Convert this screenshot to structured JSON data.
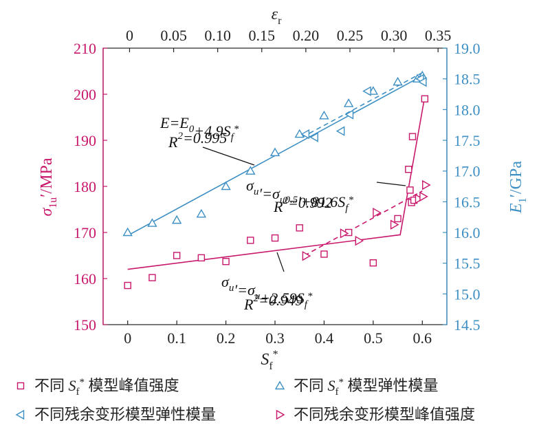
{
  "chart_data": {
    "type": "scatter",
    "axes": {
      "bottom": {
        "label_main": "S",
        "label_sub": "f",
        "label_sup": "*",
        "min": -0.05,
        "max": 0.65,
        "ticks": [
          0,
          0.1,
          0.2,
          0.3,
          0.4,
          0.5,
          0.6
        ],
        "tick_labels": [
          "0",
          "0.1",
          "0.2",
          "0.3",
          "0.4",
          "0.5",
          "0.6"
        ]
      },
      "top": {
        "label_main": "ε",
        "label_sub": "r",
        "min": -0.03,
        "max": 0.36,
        "ticks": [
          0,
          0.05,
          0.1,
          0.15,
          0.2,
          0.25,
          0.3,
          0.35
        ],
        "tick_labels": [
          "0",
          "0.05",
          "0.10",
          "0.15",
          "0.20",
          "0.25",
          "0.30",
          "0.35"
        ]
      },
      "left": {
        "label_main": "σ",
        "label_sub": "1u",
        "label_rest": "′/MPa",
        "min": 150,
        "max": 210,
        "ticks": [
          150,
          160,
          170,
          180,
          190,
          200,
          210
        ],
        "tick_labels": [
          "150",
          "160",
          "170",
          "180",
          "190",
          "200",
          "210"
        ]
      },
      "right": {
        "label_main": "E",
        "label_sub": "1",
        "label_rest": "′/GPa",
        "min": 14.5,
        "max": 19.0,
        "ticks": [
          14.5,
          15.0,
          15.5,
          16.0,
          16.5,
          17.0,
          17.5,
          18.0,
          18.5,
          19.0
        ],
        "tick_labels": [
          "14.5",
          "15.0",
          "15.5",
          "16.0",
          "16.5",
          "17.0",
          "17.5",
          "18.0",
          "18.5",
          "19.0"
        ]
      }
    },
    "colors": {
      "strength": "#c8176b",
      "modulus": "#3d8fc4"
    },
    "series": [
      {
        "name": "不同 Sf* 模型峰值强度",
        "marker": "square",
        "axis_x": "bottom",
        "axis_y": "left",
        "color": "#c8176b",
        "x": [
          0,
          0.05,
          0.1,
          0.15,
          0.2,
          0.25,
          0.3,
          0.35,
          0.4,
          0.45,
          0.5,
          0.55,
          0.572,
          0.575,
          0.578,
          0.58,
          0.583,
          0.605
        ],
        "y": [
          158.5,
          160.2,
          165.0,
          164.5,
          163.7,
          168.3,
          168.8,
          171.0,
          165.3,
          170.0,
          163.4,
          173.0,
          183.7,
          179.2,
          176.5,
          190.8,
          177.0,
          199.0
        ]
      },
      {
        "name": "不同 Sf* 模型弹性模量",
        "marker": "triangle-up",
        "axis_x": "bottom",
        "axis_y": "right",
        "color": "#3d8fc4",
        "x": [
          0,
          0.05,
          0.1,
          0.15,
          0.2,
          0.25,
          0.3,
          0.35,
          0.4,
          0.45,
          0.5,
          0.55,
          0.59,
          0.6
        ],
        "y": [
          16.0,
          16.15,
          16.2,
          16.3,
          16.75,
          17.0,
          17.3,
          17.6,
          17.9,
          18.1,
          18.3,
          18.45,
          18.5,
          18.55
        ]
      },
      {
        "name": "不同残余变形模型弹性模量",
        "marker": "triangle-left",
        "axis_x": "top",
        "axis_y": "right",
        "color": "#3d8fc4",
        "x": [
          0.2,
          0.21,
          0.24,
          0.25,
          0.27,
          0.33,
          0.333
        ],
        "y": [
          17.6,
          17.55,
          17.65,
          17.92,
          18.3,
          18.5,
          18.45
        ]
      },
      {
        "name": "不同残余变形模型峰值强度",
        "marker": "triangle-right",
        "axis_x": "top",
        "axis_y": "left",
        "color": "#c8176b",
        "x": [
          0.2,
          0.243,
          0.26,
          0.28,
          0.3,
          0.328,
          0.333,
          0.336
        ],
        "y": [
          164.9,
          169.8,
          168.2,
          174.3,
          171.7,
          177.3,
          177.8,
          180.3
        ]
      }
    ],
    "fits": [
      {
        "color": "#3d8fc4",
        "style": "solid",
        "axis_x": "bottom",
        "axis_y": "right",
        "x": [
          0,
          0.6
        ],
        "y": [
          15.95,
          18.55
        ]
      },
      {
        "color": "#3d8fc4",
        "style": "dashed",
        "axis_x": "bottom",
        "axis_y": "right",
        "x": [
          0.355,
          0.6
        ],
        "y": [
          17.55,
          18.6
        ]
      },
      {
        "color": "#c8176b",
        "style": "solid",
        "axis_x": "bottom",
        "axis_y": "left",
        "x": [
          0,
          0.555,
          0.605
        ],
        "y": [
          162.0,
          169.5,
          199.5
        ]
      },
      {
        "color": "#c8176b",
        "style": "dashed",
        "axis_x": "bottom",
        "axis_y": "left",
        "x": [
          0.36,
          0.6
        ],
        "y": [
          165.0,
          179.0
        ]
      }
    ],
    "annotations": [
      {
        "line1": "E=E",
        "l1sub": "0",
        "l1rest": "+4.9S",
        "l1sub2": "f",
        "l1sup": "*",
        "line2": "R",
        "l2sup": "2",
        "l2rest": "=0.995"
      },
      {
        "line1": "σ",
        "l1sub": "u",
        "l1rest": "′=σ",
        "l1sub2": "u0.5",
        "l1rest2": "′+81.6S",
        "l1sub3": "f",
        "l1sup": "*",
        "line2": "R",
        "l2sup": "2",
        "l2rest": "=0.992"
      },
      {
        "line1": "σ",
        "l1sub": "u",
        "l1rest": "′=σ",
        "l1sub2": "u",
        "l1rest2": "+2.59S",
        "l1sub3": "f",
        "l1sup": "*",
        "line2": "R",
        "l2sup": "2",
        "l2rest": "=0.949"
      }
    ]
  },
  "legend": [
    {
      "prefix": "不同 ",
      "main": "S",
      "sub": "f",
      "sup": "*",
      "suffix": " 模型峰值强度",
      "marker": "square",
      "color": "#c8176b"
    },
    {
      "prefix": "不同 ",
      "main": "S",
      "sub": "f",
      "sup": "*",
      "suffix": " 模型弹性模量",
      "marker": "triangle-up",
      "color": "#3d8fc4"
    },
    {
      "prefix": "",
      "main": "",
      "sub": "",
      "sup": "",
      "suffix": "不同残余变形模型弹性模量",
      "marker": "triangle-left",
      "color": "#3d8fc4"
    },
    {
      "prefix": "",
      "main": "",
      "sub": "",
      "sup": "",
      "suffix": "不同残余变形模型峰值强度",
      "marker": "triangle-right",
      "color": "#c8176b"
    }
  ]
}
